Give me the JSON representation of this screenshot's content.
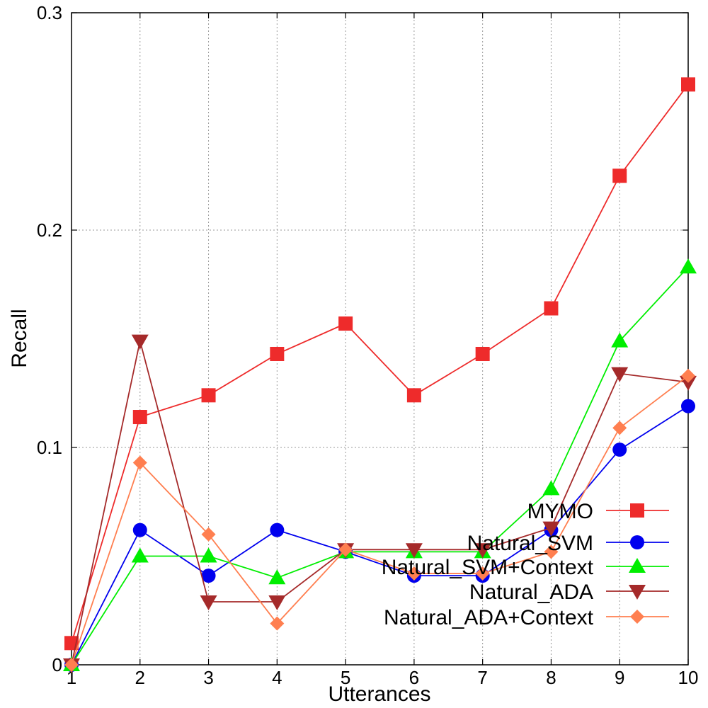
{
  "chart_data": {
    "type": "line",
    "title": "",
    "xlabel": "Utterances",
    "ylabel": "Recall",
    "x": [
      1,
      2,
      3,
      4,
      5,
      6,
      7,
      8,
      9,
      10
    ],
    "xlim": [
      1,
      10
    ],
    "ylim": [
      0,
      0.3
    ],
    "yticks": [
      "0",
      "0.1",
      "0.2",
      "0.3"
    ],
    "xticks": [
      "1",
      "2",
      "3",
      "4",
      "5",
      "6",
      "7",
      "8",
      "9",
      "10"
    ],
    "grid": true,
    "legend_position": "bottom-right",
    "series": [
      {
        "name": "MYMO",
        "color": "#ee2b2b",
        "marker": "square",
        "values": [
          0.01,
          0.114,
          0.124,
          0.143,
          0.157,
          0.124,
          0.143,
          0.164,
          0.225,
          0.267
        ]
      },
      {
        "name": "Natural_SVM",
        "color": "#0000ee",
        "marker": "circle",
        "values": [
          0.0,
          0.062,
          0.041,
          0.062,
          0.052,
          0.041,
          0.041,
          0.062,
          0.099,
          0.119
        ]
      },
      {
        "name": "Natural_SVM+Context",
        "color": "#00ee00",
        "marker": "triangle-up",
        "values": [
          0.0,
          0.05,
          0.05,
          0.04,
          0.052,
          0.052,
          0.052,
          0.081,
          0.149,
          0.183
        ]
      },
      {
        "name": "Natural_ADA",
        "color": "#a52a2a",
        "marker": "triangle-down",
        "values": [
          0.0,
          0.149,
          0.029,
          0.029,
          0.053,
          0.053,
          0.053,
          0.063,
          0.134,
          0.13
        ]
      },
      {
        "name": "Natural_ADA+Context",
        "color": "#ff7f50",
        "marker": "diamond",
        "values": [
          0.0,
          0.093,
          0.06,
          0.019,
          0.053,
          0.042,
          0.042,
          0.052,
          0.109,
          0.133
        ]
      }
    ]
  }
}
